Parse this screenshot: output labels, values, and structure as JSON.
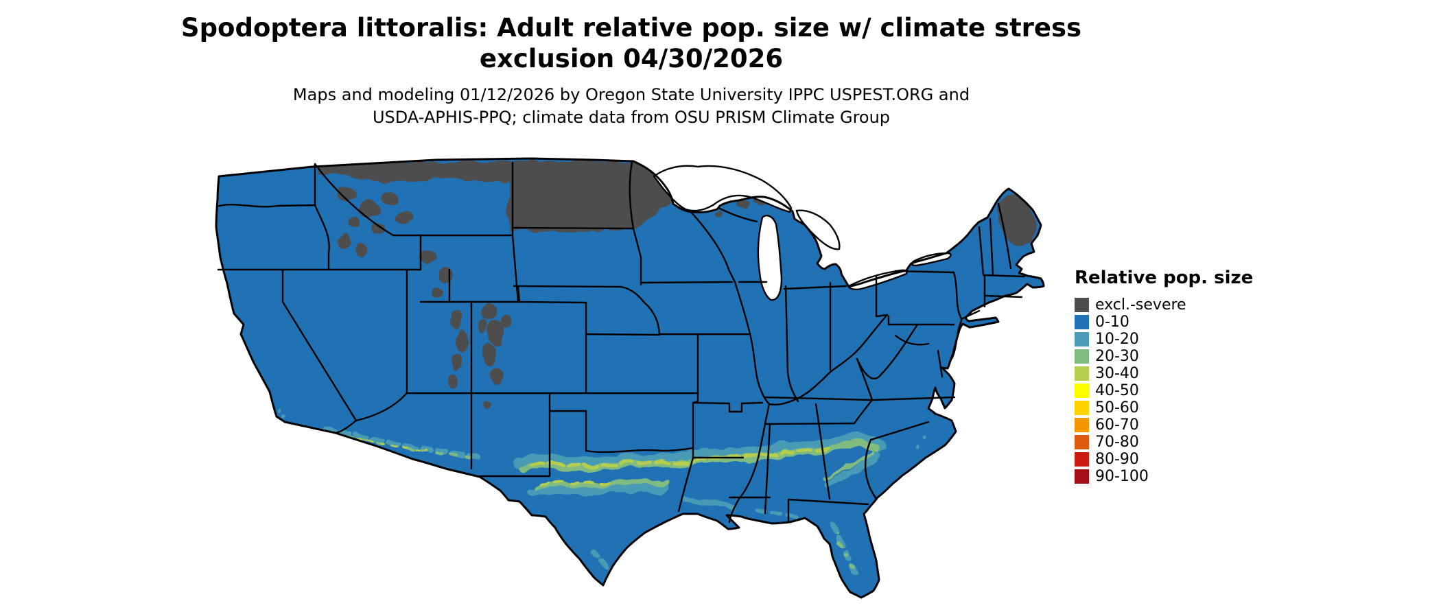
{
  "title": {
    "line1": "Spodoptera littoralis: Adult relative pop. size w/ climate stress",
    "line2": "exclusion 04/30/2026"
  },
  "subtitle": {
    "line1": "Maps and modeling 01/12/2026 by Oregon State University IPPC USPEST.ORG and",
    "line2": "USDA-APHIS-PPQ; climate data from OSU PRISM Climate Group"
  },
  "legend": {
    "title": "Relative pop. size",
    "entries": [
      {
        "label": "excl.-severe",
        "color": "#4d4d4d"
      },
      {
        "label": "0-10",
        "color": "#2171b5"
      },
      {
        "label": "10-20",
        "color": "#4a9bb5"
      },
      {
        "label": "20-30",
        "color": "#82bb7f"
      },
      {
        "label": "30-40",
        "color": "#b5ce4e"
      },
      {
        "label": "40-50",
        "color": "#fdfd00"
      },
      {
        "label": "50-60",
        "color": "#ffd300"
      },
      {
        "label": "60-70",
        "color": "#f59700"
      },
      {
        "label": "70-80",
        "color": "#dd5a10"
      },
      {
        "label": "80-90",
        "color": "#cc1a0e"
      },
      {
        "label": "90-100",
        "color": "#a50f15"
      }
    ]
  },
  "map": {
    "type": "choropleth-us-states",
    "base_color": "#2171b5",
    "exclusion_color": "#4d4d4d",
    "border_color": "#000000",
    "water_color": "#ffffff"
  }
}
